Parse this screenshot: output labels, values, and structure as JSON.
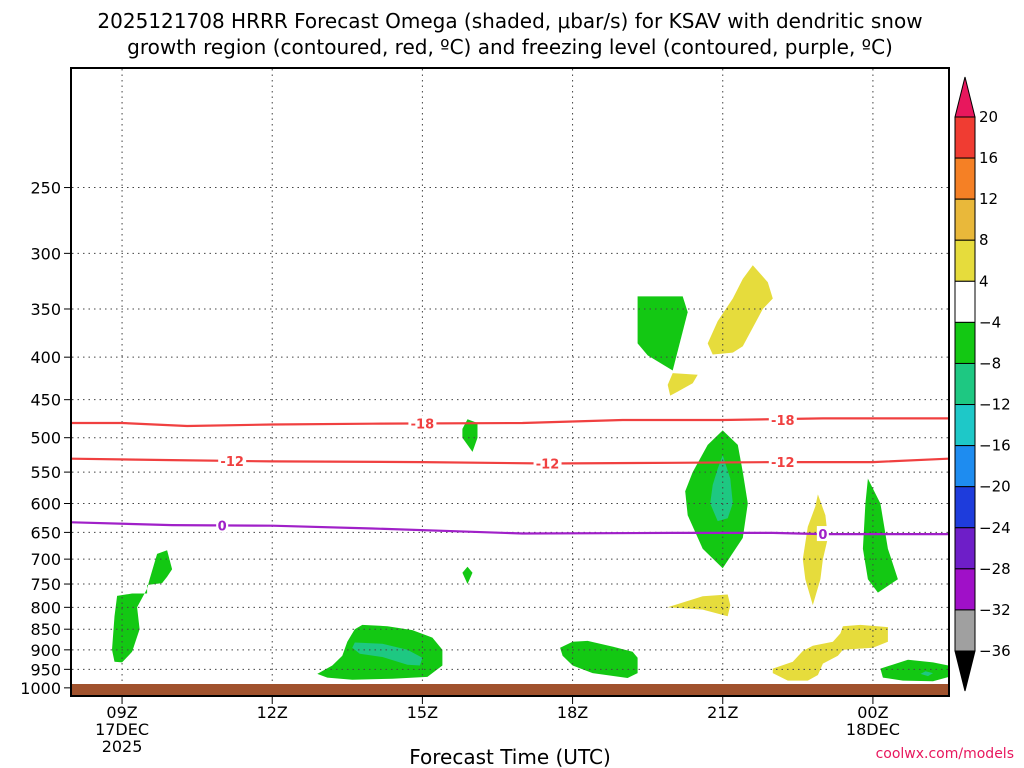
{
  "chart_data": {
    "type": "heatmap",
    "title_line1": "2025121708 HRRR Forecast Omega (shaded, μbar/s) for KSAV with dendritic snow",
    "title_line2": "growth region (contoured, red, ºC) and freezing level (contoured, purple, ºC)",
    "xlabel": "Forecast Time (UTC)",
    "credit": "coolwx.com/models",
    "x_hour_range": [
      8,
      25.5
    ],
    "y_pressure_range": [
      1020,
      180
    ],
    "y_ticks": [
      250,
      300,
      350,
      400,
      450,
      500,
      550,
      600,
      650,
      700,
      750,
      800,
      850,
      900,
      950,
      1000
    ],
    "x_ticks": [
      {
        "hour": 9,
        "lines": [
          "09Z",
          "17DEC",
          "2025"
        ]
      },
      {
        "hour": 12,
        "lines": [
          "12Z"
        ]
      },
      {
        "hour": 15,
        "lines": [
          "15Z"
        ]
      },
      {
        "hour": 18,
        "lines": [
          "18Z"
        ]
      },
      {
        "hour": 21,
        "lines": [
          "21Z"
        ]
      },
      {
        "hour": 24,
        "lines": [
          "00Z",
          "18DEC"
        ]
      }
    ],
    "colorbar": {
      "labels": [
        "20",
        "16",
        "12",
        "8",
        "4",
        "−4",
        "−8",
        "−12",
        "−16",
        "−20",
        "−24",
        "−28",
        "−32",
        "−36"
      ],
      "colors": [
        "#e8175d",
        "#f03c32",
        "#f58025",
        "#e9b83a",
        "#e6dc3c",
        "#ffffff",
        "#13c813",
        "#1ec882",
        "#1ec8c8",
        "#1e8cf0",
        "#1e3cdc",
        "#6e1ec8",
        "#a010c8",
        "#a0a0a0",
        "#000000"
      ]
    },
    "contours": [
      {
        "name": "dendritic-contour-minus18",
        "label": "-18",
        "color": "#f04040",
        "points": [
          [
            8,
            480
          ],
          [
            9,
            480
          ],
          [
            10.3,
            484
          ],
          [
            12,
            482
          ],
          [
            14,
            481
          ],
          [
            17,
            480
          ],
          [
            19,
            476
          ],
          [
            21,
            476
          ],
          [
            23,
            474
          ],
          [
            25.5,
            474
          ]
        ],
        "label_positions": [
          [
            15.0,
            481
          ],
          [
            22.2,
            476
          ]
        ]
      },
      {
        "name": "dendritic-contour-minus12",
        "label": "-12",
        "color": "#f04040",
        "points": [
          [
            8,
            530
          ],
          [
            10,
            532
          ],
          [
            12,
            534
          ],
          [
            15,
            535
          ],
          [
            17.5,
            537
          ],
          [
            20,
            536
          ],
          [
            22,
            535
          ],
          [
            24,
            535
          ],
          [
            25.5,
            530
          ]
        ],
        "label_positions": [
          [
            11.2,
            533
          ],
          [
            17.5,
            537
          ],
          [
            22.2,
            535
          ]
        ]
      },
      {
        "name": "freezing-level-contour-0",
        "label": "0",
        "color": "#a020c8",
        "points": [
          [
            8,
            632
          ],
          [
            10,
            637
          ],
          [
            12,
            638
          ],
          [
            14,
            643
          ],
          [
            16,
            649
          ],
          [
            17,
            652
          ],
          [
            20,
            651
          ],
          [
            22,
            651
          ],
          [
            23,
            653
          ],
          [
            25.5,
            653
          ]
        ],
        "label_positions": [
          [
            11.0,
            638
          ],
          [
            23.0,
            653
          ]
        ]
      }
    ],
    "regions": [
      {
        "name": "omega-region-upward-a",
        "value": -6,
        "color": "#13c813",
        "points": [
          [
            19.3,
            338
          ],
          [
            20.2,
            338
          ],
          [
            20.3,
            353
          ],
          [
            20.0,
            415
          ],
          [
            19.5,
            398
          ],
          [
            19.3,
            385
          ]
        ]
      },
      {
        "name": "omega-region-downward-a",
        "value": 6,
        "color": "#e6dc3c",
        "points": [
          [
            21.6,
            310
          ],
          [
            21.9,
            325
          ],
          [
            22.0,
            340
          ],
          [
            21.8,
            350
          ],
          [
            21.4,
            388
          ],
          [
            21.2,
            395
          ],
          [
            20.8,
            397
          ],
          [
            20.7,
            385
          ],
          [
            20.9,
            362
          ],
          [
            21.2,
            340
          ],
          [
            21.4,
            322
          ]
        ]
      },
      {
        "name": "omega-region-downward-b",
        "value": 6,
        "color": "#e6dc3c",
        "points": [
          [
            20.0,
            418
          ],
          [
            20.5,
            420
          ],
          [
            20.4,
            430
          ],
          [
            20.1,
            440
          ],
          [
            19.95,
            445
          ],
          [
            19.9,
            432
          ]
        ]
      },
      {
        "name": "omega-region-upward-b",
        "value": -6,
        "color": "#13c813",
        "points": [
          [
            15.9,
            475
          ],
          [
            16.1,
            480
          ],
          [
            16.1,
            500
          ],
          [
            16.0,
            520
          ],
          [
            15.8,
            500
          ],
          [
            15.8,
            488
          ]
        ]
      },
      {
        "name": "omega-region-upward-c",
        "value": -6,
        "color": "#13c813",
        "points": [
          [
            21.0,
            490
          ],
          [
            21.3,
            510
          ],
          [
            21.4,
            550
          ],
          [
            21.5,
            600
          ],
          [
            21.4,
            660
          ],
          [
            21.0,
            718
          ],
          [
            20.6,
            680
          ],
          [
            20.3,
            620
          ],
          [
            20.25,
            580
          ],
          [
            20.4,
            550
          ],
          [
            20.7,
            510
          ]
        ]
      },
      {
        "name": "omega-region-upward-c-core",
        "value": -10,
        "color": "#1ec882",
        "points": [
          [
            21.0,
            525
          ],
          [
            21.15,
            560
          ],
          [
            21.2,
            600
          ],
          [
            21.1,
            625
          ],
          [
            20.9,
            630
          ],
          [
            20.75,
            600
          ],
          [
            20.8,
            570
          ],
          [
            20.9,
            545
          ]
        ]
      },
      {
        "name": "omega-region-downward-c",
        "value": 6,
        "color": "#e6dc3c",
        "points": [
          [
            22.9,
            585
          ],
          [
            23.05,
            620
          ],
          [
            23.1,
            660
          ],
          [
            23.0,
            700
          ],
          [
            22.95,
            740
          ],
          [
            22.8,
            795
          ],
          [
            22.65,
            740
          ],
          [
            22.6,
            700
          ],
          [
            22.7,
            640
          ],
          [
            22.85,
            605
          ]
        ]
      },
      {
        "name": "omega-region-upward-d",
        "value": -6,
        "color": "#13c813",
        "points": [
          [
            23.9,
            560
          ],
          [
            24.15,
            600
          ],
          [
            24.3,
            680
          ],
          [
            24.5,
            740
          ],
          [
            24.1,
            768
          ],
          [
            23.9,
            740
          ],
          [
            23.8,
            680
          ],
          [
            23.85,
            600
          ]
        ]
      },
      {
        "name": "omega-region-upward-e",
        "value": -6,
        "color": "#13c813",
        "points": [
          [
            9.7,
            690
          ],
          [
            9.9,
            683
          ],
          [
            10.0,
            720
          ],
          [
            9.9,
            735
          ],
          [
            9.8,
            748
          ],
          [
            9.5,
            752
          ],
          [
            9.5,
            770
          ],
          [
            9.2,
            770
          ],
          [
            8.9,
            775
          ],
          [
            8.85,
            820
          ],
          [
            8.8,
            900
          ],
          [
            8.85,
            930
          ],
          [
            9.0,
            932
          ],
          [
            9.2,
            905
          ],
          [
            9.35,
            850
          ],
          [
            9.3,
            800
          ],
          [
            9.5,
            760
          ],
          [
            9.55,
            740
          ]
        ]
      },
      {
        "name": "omega-region-upward-f",
        "value": -6,
        "color": "#13c813",
        "points": [
          [
            15.9,
            715
          ],
          [
            16.0,
            727
          ],
          [
            15.9,
            750
          ],
          [
            15.8,
            727
          ]
        ]
      },
      {
        "name": "omega-region-downward-d",
        "value": 6,
        "color": "#e6dc3c",
        "points": [
          [
            19.9,
            800
          ],
          [
            20.6,
            776
          ],
          [
            21.1,
            772
          ],
          [
            21.15,
            795
          ],
          [
            21.1,
            820
          ],
          [
            20.6,
            805
          ]
        ]
      },
      {
        "name": "omega-region-upward-g",
        "value": -6,
        "color": "#13c813",
        "points": [
          [
            13.8,
            840
          ],
          [
            14.3,
            843
          ],
          [
            14.8,
            852
          ],
          [
            15.2,
            870
          ],
          [
            15.4,
            900
          ],
          [
            15.4,
            940
          ],
          [
            15.1,
            970
          ],
          [
            14.4,
            975
          ],
          [
            13.6,
            978
          ],
          [
            13.1,
            972
          ],
          [
            12.9,
            962
          ],
          [
            13.2,
            940
          ],
          [
            13.4,
            915
          ],
          [
            13.5,
            880
          ],
          [
            13.65,
            850
          ]
        ]
      },
      {
        "name": "omega-region-upward-g-core",
        "value": -10,
        "color": "#1ec882",
        "points": [
          [
            13.65,
            882
          ],
          [
            14.2,
            885
          ],
          [
            14.7,
            900
          ],
          [
            15.0,
            920
          ],
          [
            14.95,
            940
          ],
          [
            14.7,
            938
          ],
          [
            14.2,
            918
          ],
          [
            13.75,
            910
          ],
          [
            13.6,
            895
          ]
        ]
      },
      {
        "name": "omega-region-upward-h",
        "value": -6,
        "color": "#13c813",
        "points": [
          [
            18.0,
            880
          ],
          [
            18.3,
            878
          ],
          [
            18.8,
            892
          ],
          [
            19.2,
            905
          ],
          [
            19.3,
            920
          ],
          [
            19.3,
            960
          ],
          [
            19.1,
            973
          ],
          [
            18.4,
            960
          ],
          [
            18.0,
            940
          ],
          [
            17.8,
            915
          ],
          [
            17.75,
            895
          ]
        ]
      },
      {
        "name": "omega-region-downward-e",
        "value": 6,
        "color": "#e6dc3c",
        "points": [
          [
            23.4,
            843
          ],
          [
            23.75,
            840
          ],
          [
            24.3,
            845
          ],
          [
            24.3,
            880
          ],
          [
            24.0,
            895
          ],
          [
            23.4,
            900
          ],
          [
            23.3,
            915
          ],
          [
            23.0,
            935
          ],
          [
            22.9,
            965
          ],
          [
            22.7,
            980
          ],
          [
            22.3,
            980
          ],
          [
            22.0,
            960
          ],
          [
            22.0,
            948
          ],
          [
            22.4,
            930
          ],
          [
            22.6,
            903
          ],
          [
            22.8,
            890
          ],
          [
            23.2,
            880
          ],
          [
            23.35,
            860
          ]
        ]
      },
      {
        "name": "omega-region-upward-i",
        "value": -6,
        "color": "#13c813",
        "points": [
          [
            24.15,
            948
          ],
          [
            24.7,
            925
          ],
          [
            25.2,
            932
          ],
          [
            25.7,
            945
          ],
          [
            25.65,
            965
          ],
          [
            25.2,
            982
          ],
          [
            24.6,
            980
          ],
          [
            24.2,
            972
          ]
        ]
      },
      {
        "name": "omega-region-upward-i-core",
        "value": -10,
        "color": "#1ec882",
        "points": [
          [
            25.05,
            955
          ],
          [
            25.2,
            960
          ],
          [
            25.1,
            968
          ],
          [
            24.95,
            962
          ]
        ]
      }
    ],
    "ground_color": "#a0522d"
  }
}
